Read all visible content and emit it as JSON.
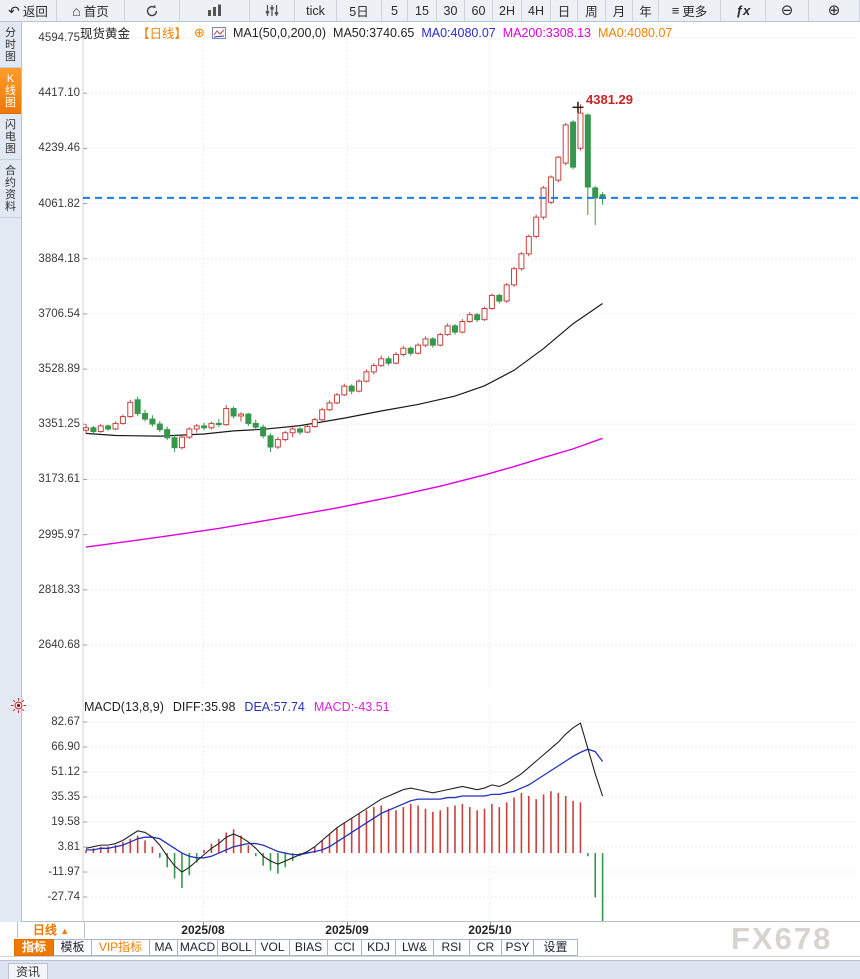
{
  "icons": {
    "back": "↶",
    "home": "⌂",
    "menu": "≡",
    "fx": "ƒx",
    "zoom_out": "⊖",
    "zoom_in": "⊕",
    "plus_circle": "⊕",
    "up_triangle": "▲"
  },
  "colors": {
    "accent_orange": "#f07800",
    "up_red": "#c9413f",
    "down_green": "#35984d",
    "ma50_black": "#1a1a1a",
    "ma200_magenta": "#e000e0",
    "dea_blue": "#2233bb",
    "diff_black": "#222222",
    "current_price_blue": "#1a7ce8",
    "annotation_red": "#cc2222"
  },
  "toolbar": {
    "items": [
      {
        "name": "back",
        "label": "返回",
        "icon": "back",
        "w": 57
      },
      {
        "name": "home",
        "label": "首页",
        "icon": "home",
        "w": 68
      },
      {
        "name": "refresh",
        "icon": "refresh",
        "w": 55
      },
      {
        "name": "kline-type",
        "icon": "kline",
        "w": 70
      },
      {
        "name": "indicators",
        "icon": "sliders",
        "w": 45
      },
      {
        "name": "tf-tick",
        "label": "tick",
        "w": 42
      },
      {
        "name": "tf-5d",
        "label": "5日",
        "w": 45
      },
      {
        "name": "tf-5",
        "label": "5",
        "w": 26
      },
      {
        "name": "tf-15",
        "label": "15",
        "w": 29
      },
      {
        "name": "tf-30",
        "label": "30",
        "w": 28
      },
      {
        "name": "tf-60",
        "label": "60",
        "w": 28
      },
      {
        "name": "tf-2h",
        "label": "2H",
        "w": 29
      },
      {
        "name": "tf-4h",
        "label": "4H",
        "w": 29
      },
      {
        "name": "tf-day",
        "label": "日",
        "w": 27
      },
      {
        "name": "tf-week",
        "label": "周",
        "w": 28
      },
      {
        "name": "tf-month",
        "label": "月",
        "w": 27
      },
      {
        "name": "tf-year",
        "label": "年",
        "w": 26
      },
      {
        "name": "more",
        "label": "更多",
        "icon": "menu",
        "w": 62
      },
      {
        "name": "formula",
        "label": "ƒx",
        "fx": true,
        "w": 45
      },
      {
        "name": "zoom-out",
        "glyph": "zoom_out",
        "w": 43
      },
      {
        "name": "zoom-in",
        "glyph": "zoom_in",
        "w": 51
      }
    ]
  },
  "sidebar": {
    "items": [
      {
        "name": "time-chart",
        "label": "分时图",
        "active": false
      },
      {
        "name": "kline-chart",
        "label": "K线图",
        "active": true
      },
      {
        "name": "lightning-chart",
        "label": "闪电图",
        "active": false
      },
      {
        "name": "contract-info",
        "label": "合约资料",
        "active": false
      }
    ]
  },
  "chart_header": {
    "symbol": "现货黄金",
    "period": "【日线】",
    "ma_settings": "MA1(50,0,200,0)",
    "ma50": "MA50:3740.65",
    "ma0_blue": "MA0:4080.07",
    "ma200": "MA200:3308.13",
    "ma0_orange": "MA0:4080.07"
  },
  "price_axis": {
    "ticks": [
      "4594.75",
      "4417.10",
      "4239.46",
      "4061.82",
      "3884.18",
      "3706.54",
      "3528.89",
      "3351.25",
      "3173.61",
      "2995.97",
      "2818.33",
      "2640.68"
    ]
  },
  "macd_header": {
    "title": "MACD(13,8,9)",
    "diff": "DIFF:35.98",
    "dea": "DEA:57.74",
    "macd": "MACD:-43.51"
  },
  "macd_axis": {
    "ticks": [
      "82.67",
      "66.90",
      "51.12",
      "35.35",
      "19.58",
      "3.81",
      "-11.97",
      "-27.74"
    ]
  },
  "peak_annotation": "4381.29",
  "xaxis": {
    "period_label": "日线",
    "dates": [
      "2025/08",
      "2025/09",
      "2025/10"
    ]
  },
  "bottom_tabs": {
    "items": [
      {
        "name": "indicators",
        "label": "指标",
        "active": true,
        "w": 40
      },
      {
        "name": "templates",
        "label": "模板",
        "w": 38
      },
      {
        "name": "vip-indicators",
        "label": "VIP指标",
        "vip": true,
        "w": 58
      },
      {
        "name": "ma",
        "label": "MA",
        "w": 28
      },
      {
        "name": "macd",
        "label": "MACD",
        "w": 40
      },
      {
        "name": "boll",
        "label": "BOLL",
        "w": 38
      },
      {
        "name": "vol",
        "label": "VOL",
        "w": 34
      },
      {
        "name": "bias",
        "label": "BIAS",
        "w": 38
      },
      {
        "name": "cci",
        "label": "CCI",
        "w": 34
      },
      {
        "name": "kdj",
        "label": "KDJ",
        "w": 34
      },
      {
        "name": "lwr",
        "label": "LW&",
        "w": 38
      },
      {
        "name": "rsi",
        "label": "RSI",
        "w": 36
      },
      {
        "name": "cr",
        "label": "CR",
        "w": 32
      },
      {
        "name": "psy",
        "label": "PSY",
        "w": 32
      },
      {
        "name": "settings",
        "label": "设置",
        "w": 44
      }
    ]
  },
  "watermark": "FX678",
  "status_bar": {
    "tab": "资讯"
  },
  "chart_data": {
    "type": "candlestick+macd",
    "title": "现货黄金 日线",
    "y_ticks": [
      4594.75,
      4417.1,
      4239.46,
      4061.82,
      3884.18,
      3706.54,
      3528.89,
      3351.25,
      3173.61,
      2995.97,
      2818.33,
      2640.68
    ],
    "current_price": 4080.07,
    "peak_price": 4381.29,
    "peak_index": 67,
    "ma50_last": 3740.65,
    "ma200_last": 3308.13,
    "x_dates": [
      {
        "label": "2025/08",
        "i": 15.9
      },
      {
        "label": "2025/09",
        "i": 35.4
      },
      {
        "label": "2025/10",
        "i": 54.7
      }
    ],
    "candles": [
      [
        3332,
        3350,
        3320,
        3340
      ],
      [
        3340,
        3346,
        3322,
        3328
      ],
      [
        3328,
        3352,
        3324,
        3346
      ],
      [
        3346,
        3350,
        3330,
        3336
      ],
      [
        3336,
        3360,
        3332,
        3354
      ],
      [
        3354,
        3382,
        3350,
        3376
      ],
      [
        3376,
        3430,
        3372,
        3422
      ],
      [
        3430,
        3440,
        3378,
        3386
      ],
      [
        3386,
        3398,
        3360,
        3368
      ],
      [
        3368,
        3380,
        3344,
        3352
      ],
      [
        3352,
        3362,
        3326,
        3334
      ],
      [
        3334,
        3344,
        3300,
        3308
      ],
      [
        3308,
        3318,
        3262,
        3276
      ],
      [
        3276,
        3316,
        3270,
        3310
      ],
      [
        3310,
        3342,
        3304,
        3336
      ],
      [
        3336,
        3352,
        3324,
        3346
      ],
      [
        3346,
        3356,
        3332,
        3340
      ],
      [
        3340,
        3360,
        3334,
        3354
      ],
      [
        3354,
        3368,
        3342,
        3350
      ],
      [
        3350,
        3413,
        3346,
        3402
      ],
      [
        3402,
        3408,
        3370,
        3378
      ],
      [
        3378,
        3390,
        3360,
        3384
      ],
      [
        3384,
        3388,
        3346,
        3354
      ],
      [
        3354,
        3366,
        3334,
        3342
      ],
      [
        3342,
        3350,
        3306,
        3314
      ],
      [
        3314,
        3322,
        3262,
        3278
      ],
      [
        3278,
        3310,
        3272,
        3302
      ],
      [
        3302,
        3330,
        3296,
        3324
      ],
      [
        3324,
        3344,
        3310,
        3336
      ],
      [
        3336,
        3342,
        3318,
        3326
      ],
      [
        3326,
        3350,
        3322,
        3344
      ],
      [
        3344,
        3372,
        3340,
        3366
      ],
      [
        3366,
        3404,
        3362,
        3398
      ],
      [
        3398,
        3428,
        3394,
        3420
      ],
      [
        3420,
        3452,
        3416,
        3446
      ],
      [
        3446,
        3482,
        3442,
        3474
      ],
      [
        3474,
        3480,
        3448,
        3458
      ],
      [
        3458,
        3496,
        3454,
        3490
      ],
      [
        3490,
        3528,
        3486,
        3520
      ],
      [
        3520,
        3548,
        3512,
        3540
      ],
      [
        3540,
        3572,
        3536,
        3562
      ],
      [
        3562,
        3570,
        3540,
        3548
      ],
      [
        3548,
        3584,
        3544,
        3576
      ],
      [
        3576,
        3604,
        3570,
        3596
      ],
      [
        3596,
        3602,
        3572,
        3580
      ],
      [
        3580,
        3612,
        3576,
        3606
      ],
      [
        3606,
        3634,
        3600,
        3626
      ],
      [
        3626,
        3632,
        3598,
        3606
      ],
      [
        3606,
        3646,
        3602,
        3640
      ],
      [
        3640,
        3676,
        3636,
        3668
      ],
      [
        3668,
        3674,
        3640,
        3648
      ],
      [
        3648,
        3690,
        3644,
        3682
      ],
      [
        3682,
        3712,
        3678,
        3704
      ],
      [
        3704,
        3710,
        3680,
        3688
      ],
      [
        3688,
        3730,
        3684,
        3724
      ],
      [
        3724,
        3772,
        3720,
        3766
      ],
      [
        3766,
        3772,
        3740,
        3748
      ],
      [
        3748,
        3806,
        3742,
        3800
      ],
      [
        3800,
        3858,
        3794,
        3852
      ],
      [
        3852,
        3906,
        3846,
        3900
      ],
      [
        3900,
        3962,
        3892,
        3956
      ],
      [
        3956,
        4026,
        3950,
        4018
      ],
      [
        4018,
        4118,
        4010,
        4112
      ],
      [
        4066,
        4152,
        4060,
        4147
      ],
      [
        4137,
        4215,
        4130,
        4211
      ],
      [
        4192,
        4321,
        4185,
        4315
      ],
      [
        4324,
        4330,
        4172,
        4179
      ],
      [
        4240,
        4381.29,
        4232,
        4353
      ],
      [
        4347,
        4352,
        4025,
        4115
      ],
      [
        4112,
        4118,
        3993,
        4080
      ],
      [
        4090,
        4098,
        4058,
        4078
      ]
    ],
    "ma50_points": [
      [
        0,
        3322
      ],
      [
        4,
        3315
      ],
      [
        10,
        3313
      ],
      [
        16,
        3320
      ],
      [
        20,
        3330
      ],
      [
        24,
        3335
      ],
      [
        29,
        3347
      ],
      [
        35,
        3371
      ],
      [
        40,
        3394
      ],
      [
        45,
        3415
      ],
      [
        50,
        3442
      ],
      [
        54,
        3475
      ],
      [
        58,
        3525
      ],
      [
        62,
        3595
      ],
      [
        66,
        3675
      ],
      [
        70,
        3740
      ]
    ],
    "ma200_points": [
      [
        0,
        2956
      ],
      [
        10,
        2988
      ],
      [
        18,
        3016
      ],
      [
        26,
        3048
      ],
      [
        34,
        3082
      ],
      [
        42,
        3120
      ],
      [
        48,
        3152
      ],
      [
        54,
        3188
      ],
      [
        58,
        3215
      ],
      [
        62,
        3244
      ],
      [
        66,
        3272
      ],
      [
        70,
        3306
      ]
    ],
    "macd": {
      "y_ticks": [
        82.67,
        66.9,
        51.12,
        35.35,
        19.58,
        3.81,
        -11.97,
        -27.74
      ],
      "diff": [
        3,
        4,
        5,
        5,
        6,
        8,
        11,
        14,
        13,
        10,
        5,
        -2,
        -8,
        -12,
        -9,
        -5,
        -1,
        3,
        6,
        10,
        12,
        10,
        7,
        3,
        -2,
        -5,
        -7,
        -5,
        -3,
        -1,
        1,
        4,
        8,
        12,
        16,
        19,
        22,
        25,
        28,
        31,
        34,
        36,
        38,
        40,
        41,
        40,
        39,
        38,
        39,
        40,
        41,
        42,
        41,
        40,
        41,
        43,
        42,
        44,
        47,
        50,
        54,
        58,
        62,
        66,
        70,
        75,
        79,
        82,
        66,
        50,
        35.98
      ],
      "dea": [
        2,
        2,
        3,
        3,
        4,
        5,
        7,
        9,
        10,
        10,
        9,
        6,
        3,
        0,
        -2,
        -3,
        -3,
        -2,
        0,
        2,
        4,
        5,
        6,
        6,
        5,
        3,
        1,
        0,
        -1,
        -1,
        0,
        1,
        2,
        4,
        7,
        10,
        13,
        16,
        19,
        22,
        25,
        27,
        29,
        31,
        33,
        34,
        34,
        34,
        34,
        35,
        35,
        36,
        36,
        36,
        36,
        37,
        37,
        38,
        39,
        41,
        43,
        46,
        49,
        52,
        55,
        58,
        61,
        63.5,
        65.5,
        64,
        57.74
      ],
      "hist": [
        2,
        3,
        4,
        4,
        5,
        7,
        9,
        11,
        8,
        4,
        -3,
        -9,
        -16,
        -22,
        -14,
        -6,
        2,
        6,
        9,
        13,
        15,
        11,
        5,
        -2,
        -8,
        -11,
        -13,
        -9,
        -5,
        -2,
        1,
        4,
        8,
        12,
        16,
        19,
        22,
        25,
        27,
        29,
        30,
        28,
        27,
        29,
        31,
        30,
        28,
        26,
        27,
        29,
        30,
        31,
        29,
        27,
        28,
        31,
        29,
        32,
        35,
        38,
        36,
        34,
        37,
        39,
        38,
        36,
        33,
        32,
        -2,
        -28,
        -43.51
      ]
    }
  }
}
